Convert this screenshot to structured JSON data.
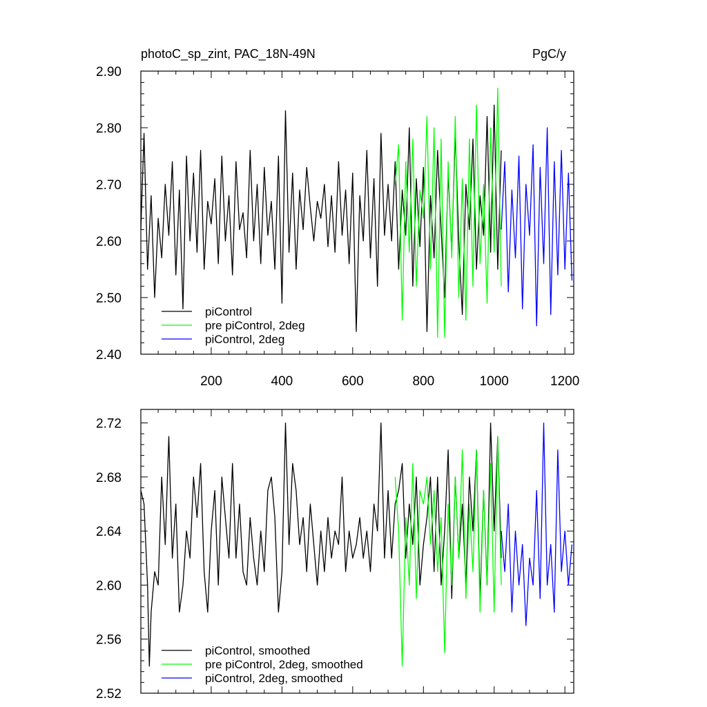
{
  "chart_data": [
    {
      "type": "line",
      "title": "photoC_sp_zint, PAC_18N-49N",
      "units": "PgC/y",
      "xlim": [
        1,
        1225
      ],
      "ylim": [
        2.4,
        2.9
      ],
      "xticks": [
        {
          "v": 200,
          "label": "200"
        },
        {
          "v": 400,
          "label": "400"
        },
        {
          "v": 600,
          "label": "600"
        },
        {
          "v": 800,
          "label": "800"
        },
        {
          "v": 1000,
          "label": "1000"
        },
        {
          "v": 1200,
          "label": "1200"
        }
      ],
      "yticks": [
        {
          "v": 2.4,
          "label": "2.40"
        },
        {
          "v": 2.5,
          "label": "2.50"
        },
        {
          "v": 2.6,
          "label": "2.60"
        },
        {
          "v": 2.7,
          "label": "2.70"
        },
        {
          "v": 2.8,
          "label": "2.80"
        },
        {
          "v": 2.9,
          "label": "2.90"
        }
      ],
      "legend_position": "bottom-left",
      "series": [
        {
          "name": "piControl",
          "color": "#000000",
          "x": [
            1,
            10,
            20,
            30,
            40,
            50,
            60,
            70,
            80,
            90,
            100,
            110,
            120,
            130,
            140,
            150,
            160,
            170,
            180,
            190,
            200,
            210,
            220,
            230,
            240,
            250,
            260,
            270,
            280,
            290,
            300,
            310,
            320,
            330,
            340,
            350,
            360,
            370,
            380,
            390,
            400,
            410,
            420,
            430,
            440,
            450,
            460,
            470,
            480,
            490,
            500,
            510,
            520,
            530,
            540,
            550,
            560,
            570,
            580,
            590,
            600,
            610,
            620,
            630,
            640,
            650,
            660,
            670,
            680,
            690,
            700,
            710,
            720,
            730,
            740,
            750,
            760,
            770,
            780,
            790,
            800,
            810,
            820,
            830,
            840,
            850,
            860,
            870,
            880,
            890,
            900,
            910,
            920,
            930,
            940,
            950,
            960,
            970,
            980,
            990,
            1000,
            1010,
            1020
          ],
          "y": [
            2.62,
            2.79,
            2.55,
            2.68,
            2.5,
            2.64,
            2.57,
            2.7,
            2.61,
            2.74,
            2.54,
            2.69,
            2.48,
            2.75,
            2.6,
            2.72,
            2.58,
            2.76,
            2.55,
            2.67,
            2.63,
            2.71,
            2.56,
            2.75,
            2.6,
            2.68,
            2.54,
            2.74,
            2.62,
            2.65,
            2.57,
            2.76,
            2.6,
            2.7,
            2.56,
            2.73,
            2.61,
            2.67,
            2.55,
            2.75,
            2.49,
            2.83,
            2.58,
            2.72,
            2.55,
            2.69,
            2.62,
            2.73,
            2.66,
            2.6,
            2.67,
            2.64,
            2.7,
            2.59,
            2.68,
            2.58,
            2.74,
            2.61,
            2.69,
            2.56,
            2.72,
            2.44,
            2.68,
            2.6,
            2.76,
            2.57,
            2.71,
            2.52,
            2.79,
            2.61,
            2.7,
            2.6,
            2.74,
            2.55,
            2.69,
            2.61,
            2.8,
            2.52,
            2.71,
            2.59,
            2.73,
            2.44,
            2.68,
            2.57,
            2.76,
            2.62,
            2.5,
            2.72,
            2.58,
            2.79,
            2.6,
            2.47,
            2.7,
            2.62,
            2.78,
            2.55,
            2.68,
            2.61,
            2.82,
            2.58,
            2.84,
            2.55,
            2.76
          ]
        },
        {
          "name": "pre piControl, 2deg",
          "color": "#00ff00",
          "x": [
            720,
            730,
            740,
            750,
            760,
            770,
            780,
            790,
            800,
            810,
            820,
            830,
            840,
            850,
            860,
            870,
            880,
            890,
            900,
            910,
            920,
            930,
            940,
            950,
            960,
            970,
            980,
            990,
            1000,
            1010,
            1020
          ],
          "y": [
            2.7,
            2.77,
            2.46,
            2.74,
            2.58,
            2.78,
            2.52,
            2.69,
            2.64,
            2.82,
            2.55,
            2.8,
            2.43,
            2.78,
            2.43,
            2.74,
            2.57,
            2.82,
            2.5,
            2.71,
            2.46,
            2.78,
            2.52,
            2.84,
            2.56,
            2.7,
            2.49,
            2.8,
            2.58,
            2.87,
            2.52
          ]
        },
        {
          "name": "piControl, 2deg",
          "color": "#0000ff",
          "x": [
            1020,
            1030,
            1040,
            1050,
            1060,
            1070,
            1080,
            1090,
            1100,
            1110,
            1120,
            1130,
            1140,
            1150,
            1160,
            1170,
            1180,
            1190,
            1200,
            1210,
            1220
          ],
          "y": [
            2.62,
            2.74,
            2.51,
            2.69,
            2.57,
            2.75,
            2.48,
            2.7,
            2.61,
            2.77,
            2.45,
            2.73,
            2.56,
            2.8,
            2.47,
            2.74,
            2.54,
            2.76,
            2.55,
            2.72,
            2.53
          ]
        }
      ]
    },
    {
      "type": "line",
      "xlim": [
        1,
        1225
      ],
      "ylim": [
        2.52,
        2.73
      ],
      "xticks": [
        {
          "v": 200,
          "label": ""
        },
        {
          "v": 400,
          "label": ""
        },
        {
          "v": 600,
          "label": ""
        },
        {
          "v": 800,
          "label": ""
        },
        {
          "v": 1000,
          "label": ""
        },
        {
          "v": 1200,
          "label": ""
        }
      ],
      "yticks": [
        {
          "v": 2.52,
          "label": "2.52"
        },
        {
          "v": 2.56,
          "label": "2.56"
        },
        {
          "v": 2.6,
          "label": "2.60"
        },
        {
          "v": 2.64,
          "label": "2.64"
        },
        {
          "v": 2.68,
          "label": "2.68"
        },
        {
          "v": 2.72,
          "label": "2.72"
        }
      ],
      "legend_position": "bottom-left",
      "series": [
        {
          "name": "piControl, smoothed",
          "color": "#000000",
          "x": [
            1,
            10,
            20,
            25,
            30,
            40,
            50,
            60,
            70,
            80,
            90,
            100,
            110,
            120,
            130,
            140,
            150,
            160,
            170,
            180,
            190,
            200,
            210,
            220,
            230,
            240,
            250,
            260,
            270,
            280,
            290,
            300,
            310,
            320,
            330,
            340,
            350,
            360,
            370,
            380,
            390,
            400,
            410,
            420,
            430,
            440,
            450,
            460,
            470,
            480,
            490,
            500,
            510,
            520,
            530,
            540,
            550,
            560,
            570,
            580,
            590,
            600,
            610,
            620,
            630,
            640,
            650,
            660,
            670,
            680,
            690,
            700,
            710,
            720,
            730,
            740,
            750,
            760,
            770,
            780,
            790,
            800,
            810,
            820,
            830,
            840,
            850,
            860,
            870,
            880,
            890,
            900,
            910,
            920,
            930,
            940,
            950,
            960,
            970,
            980,
            990,
            1000,
            1010,
            1020
          ],
          "y": [
            2.67,
            2.66,
            2.6,
            2.54,
            2.58,
            2.61,
            2.6,
            2.68,
            2.63,
            2.71,
            2.62,
            2.66,
            2.58,
            2.6,
            2.64,
            2.62,
            2.68,
            2.65,
            2.69,
            2.61,
            2.58,
            2.64,
            2.67,
            2.6,
            2.68,
            2.65,
            2.62,
            2.69,
            2.62,
            2.66,
            2.61,
            2.6,
            2.65,
            2.62,
            2.6,
            2.64,
            2.61,
            2.67,
            2.68,
            2.65,
            2.58,
            2.61,
            2.72,
            2.63,
            2.69,
            2.67,
            2.63,
            2.65,
            2.61,
            2.66,
            2.63,
            2.6,
            2.64,
            2.61,
            2.65,
            2.62,
            2.64,
            2.63,
            2.68,
            2.61,
            2.64,
            2.62,
            2.63,
            2.65,
            2.62,
            2.64,
            2.61,
            2.66,
            2.64,
            2.72,
            2.62,
            2.67,
            2.62,
            2.66,
            2.67,
            2.69,
            2.62,
            2.66,
            2.63,
            2.68,
            2.6,
            2.63,
            2.65,
            2.68,
            2.61,
            2.68,
            2.6,
            2.64,
            2.7,
            2.59,
            2.68,
            2.62,
            2.66,
            2.6,
            2.68,
            2.64,
            2.7,
            2.59,
            2.67,
            2.6,
            2.72,
            2.64,
            2.71,
            2.62
          ]
        },
        {
          "name": "pre piControl, 2deg, smoothed",
          "color": "#00ff00",
          "x": [
            720,
            730,
            740,
            750,
            760,
            770,
            780,
            790,
            800,
            810,
            820,
            830,
            840,
            850,
            860,
            870,
            880,
            890,
            900,
            910,
            920,
            930,
            940,
            950,
            960,
            970,
            980,
            990,
            1000,
            1010,
            1020
          ],
          "y": [
            2.68,
            2.64,
            2.54,
            2.65,
            2.6,
            2.69,
            2.59,
            2.67,
            2.66,
            2.68,
            2.63,
            2.67,
            2.61,
            2.65,
            2.55,
            2.66,
            2.6,
            2.68,
            2.62,
            2.7,
            2.59,
            2.66,
            2.61,
            2.7,
            2.58,
            2.67,
            2.6,
            2.69,
            2.58,
            2.71,
            2.6
          ]
        },
        {
          "name": "piControl, 2deg, smoothed",
          "color": "#0000ff",
          "x": [
            1020,
            1030,
            1040,
            1050,
            1060,
            1070,
            1080,
            1090,
            1100,
            1110,
            1120,
            1130,
            1140,
            1150,
            1160,
            1170,
            1180,
            1190,
            1200,
            1210,
            1220
          ],
          "y": [
            2.64,
            2.61,
            2.66,
            2.58,
            2.64,
            2.6,
            2.63,
            2.57,
            2.62,
            2.6,
            2.67,
            2.59,
            2.72,
            2.6,
            2.63,
            2.58,
            2.7,
            2.61,
            2.64,
            2.6,
            2.63
          ]
        }
      ]
    }
  ]
}
